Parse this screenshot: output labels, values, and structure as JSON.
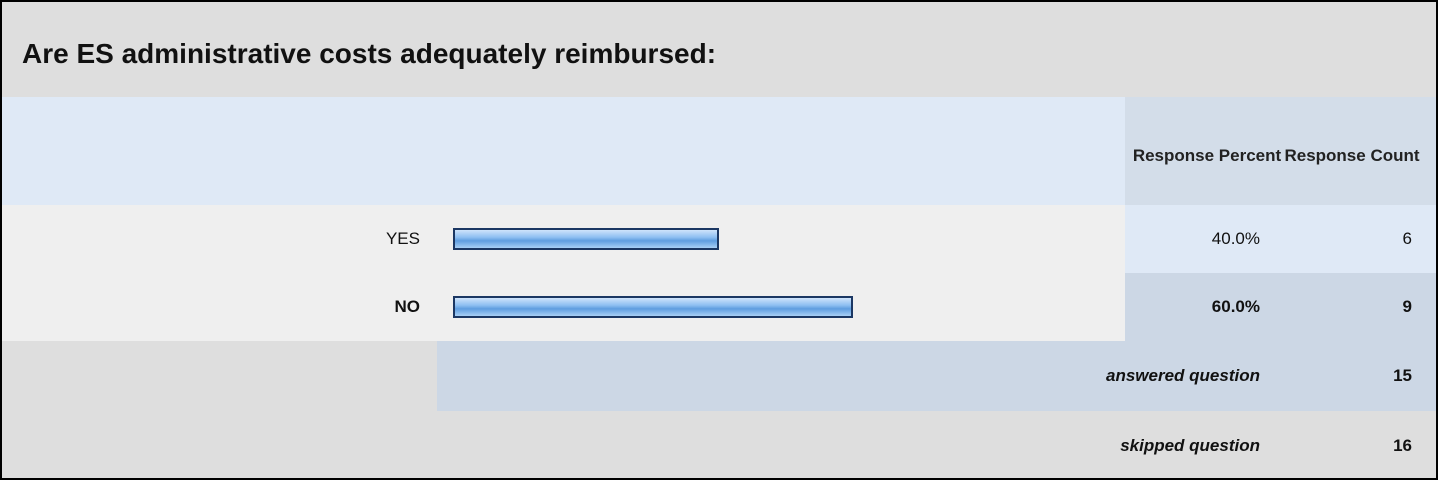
{
  "chart_data": {
    "type": "bar",
    "title": "Are ES administrative costs adequately reimbursed:",
    "columns": [
      "Response Percent",
      "Response Count"
    ],
    "categories": [
      "YES",
      "NO"
    ],
    "values": [
      40,
      60
    ],
    "value_labels": [
      "40.0%",
      "60.0%"
    ],
    "counts": [
      6,
      9
    ],
    "xlim": [
      0,
      100
    ],
    "color": "#6fa8ea",
    "summary": [
      {
        "label": "answered question",
        "value": 15
      },
      {
        "label": "skipped question",
        "value": 16
      }
    ]
  }
}
